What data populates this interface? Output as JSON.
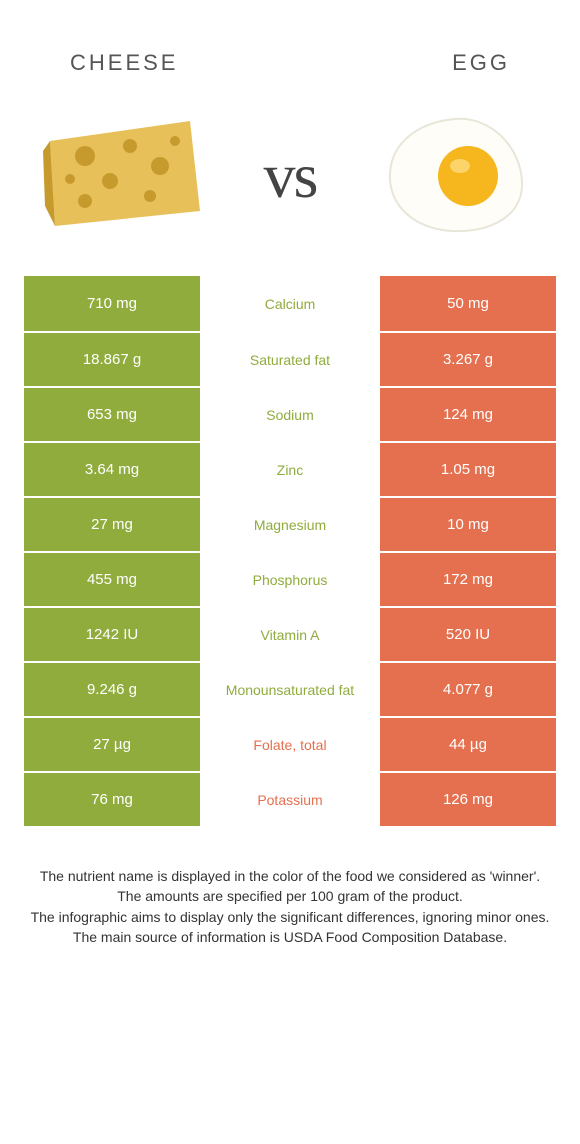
{
  "header": {
    "left_title": "Cheese",
    "right_title": "Egg"
  },
  "vs_label": "vs",
  "colors": {
    "cheese_bg": "#90ac3d",
    "egg_bg": "#e4704f",
    "label_winner_cheese": "#90ac3d",
    "label_winner_egg": "#e4704f",
    "cheese_body": "#e7c05a",
    "cheese_rind": "#c79a2e",
    "cheese_hole": "#c79a2e",
    "egg_white": "#fefdf7",
    "egg_white_edge": "#e8e6d8",
    "egg_yolk": "#f6b61e",
    "egg_yolk_hi": "#fcd469"
  },
  "rows": [
    {
      "label": "Calcium",
      "left": "710 mg",
      "right": "50 mg",
      "winner": "cheese"
    },
    {
      "label": "Saturated fat",
      "left": "18.867 g",
      "right": "3.267 g",
      "winner": "cheese"
    },
    {
      "label": "Sodium",
      "left": "653 mg",
      "right": "124 mg",
      "winner": "cheese"
    },
    {
      "label": "Zinc",
      "left": "3.64 mg",
      "right": "1.05 mg",
      "winner": "cheese"
    },
    {
      "label": "Magnesium",
      "left": "27 mg",
      "right": "10 mg",
      "winner": "cheese"
    },
    {
      "label": "Phosphorus",
      "left": "455 mg",
      "right": "172 mg",
      "winner": "cheese"
    },
    {
      "label": "Vitamin A",
      "left": "1242 IU",
      "right": "520 IU",
      "winner": "cheese"
    },
    {
      "label": "Monounsaturated fat",
      "left": "9.246 g",
      "right": "4.077 g",
      "winner": "cheese"
    },
    {
      "label": "Folate, total",
      "left": "27 µg",
      "right": "44 µg",
      "winner": "egg"
    },
    {
      "label": "Potassium",
      "left": "76 mg",
      "right": "126 mg",
      "winner": "egg"
    }
  ],
  "footnote": {
    "l1": "The nutrient name is displayed in the color of the food we considered as 'winner'.",
    "l2": "The amounts are specified per 100 gram of the product.",
    "l3": "The infographic aims to display only the significant differences, ignoring minor ones.",
    "l4": "The main source of information is USDA Food Composition Database."
  }
}
